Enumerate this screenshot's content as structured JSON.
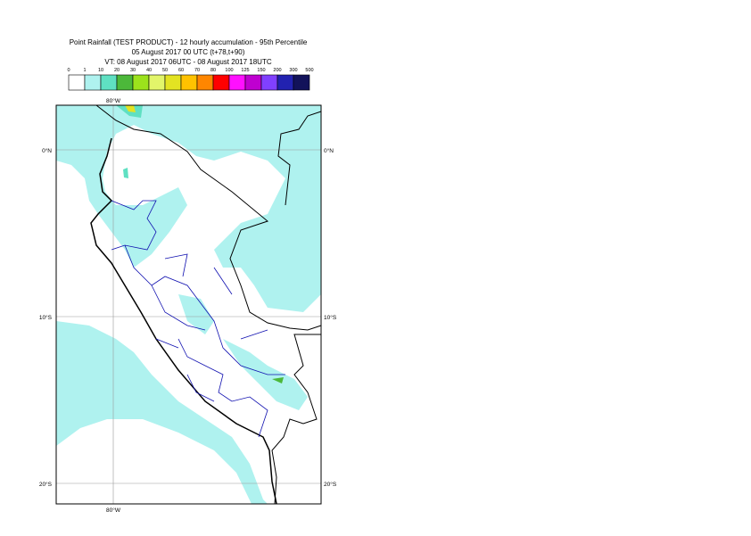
{
  "title_lines": [
    "Point Rainfall (TEST PRODUCT) - 12 hourly accumulation - 95th Percentile",
    "05 August 2017 00 UTC (t+78,t+90)",
    "VT: 08 August 2017 06UTC - 08 August 2017 18UTC"
  ],
  "legend": {
    "labels": [
      0,
      1,
      10,
      20,
      30,
      40,
      50,
      60,
      70,
      80,
      100,
      125,
      150,
      200,
      300,
      500
    ],
    "colors": [
      "#ffffff",
      "#aff2ef",
      "#5fe0c2",
      "#4cb83a",
      "#9ce21c",
      "#e2f56a",
      "#e3e322",
      "#ffc200",
      "#ff8600",
      "#ff0000",
      "#ff10ff",
      "#bf00d0",
      "#8040ff",
      "#2222b0",
      "#12125a"
    ]
  },
  "axes": {
    "lon_label": "80°W",
    "lat_labels": [
      "0°N",
      "10°S",
      "20°S"
    ]
  }
}
